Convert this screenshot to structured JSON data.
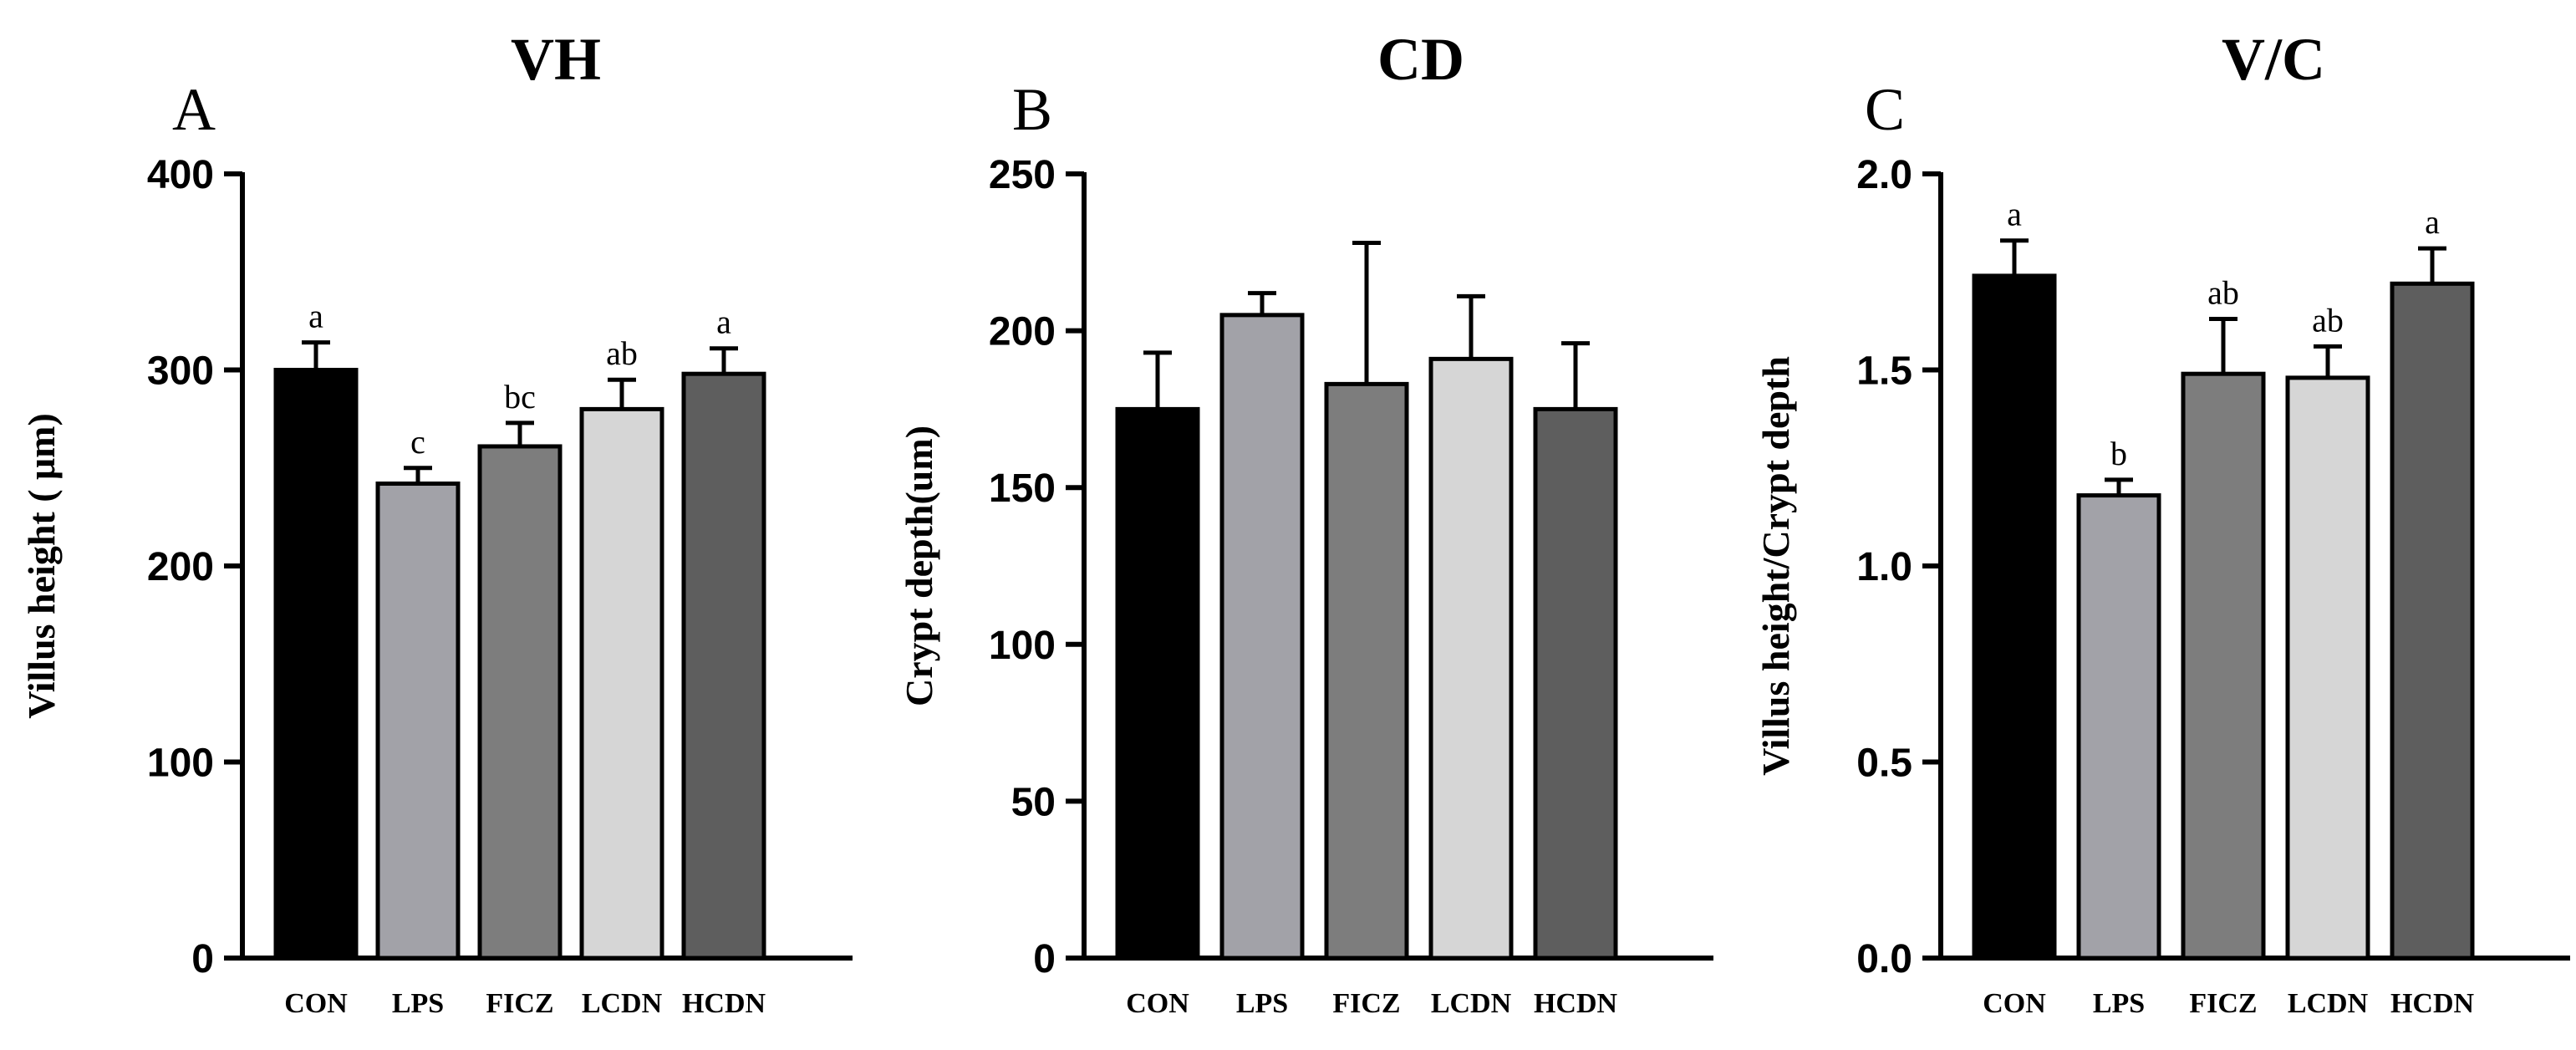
{
  "chart_data": [
    {
      "type": "bar",
      "letter": "A",
      "title": "VH",
      "ylabel": "Villus height ( μm)",
      "xlabel": "",
      "ylim": [
        0,
        400
      ],
      "yticks": [
        "0",
        "100",
        "200",
        "300",
        "400"
      ],
      "ytick_values": [
        0,
        100,
        200,
        300,
        400
      ],
      "categories": [
        "CON",
        "LPS",
        "FICZ",
        "LCDN",
        "HCDN"
      ],
      "values": [
        300,
        242,
        261,
        280,
        298
      ],
      "errors": [
        14,
        8,
        12,
        15,
        13
      ],
      "significance": [
        "a",
        "c",
        "bc",
        "ab",
        "a"
      ],
      "colors": [
        "#000000",
        "#a2a2a8",
        "#7d7d7d",
        "#d6d6d6",
        "#5e5e5e"
      ]
    },
    {
      "type": "bar",
      "letter": "B",
      "title": "CD",
      "ylabel": "Crypt depth(um)",
      "xlabel": "",
      "ylim": [
        0,
        250
      ],
      "yticks": [
        "0",
        "50",
        "100",
        "150",
        "200",
        "250"
      ],
      "ytick_values": [
        0,
        50,
        100,
        150,
        200,
        250
      ],
      "categories": [
        "CON",
        "LPS",
        "FICZ",
        "LCDN",
        "HCDN"
      ],
      "values": [
        175,
        205,
        183,
        191,
        175
      ],
      "errors": [
        18,
        7,
        45,
        20,
        21
      ],
      "significance": [
        "",
        "",
        "",
        "",
        ""
      ],
      "colors": [
        "#000000",
        "#a2a2a8",
        "#7d7d7d",
        "#d6d6d6",
        "#5e5e5e"
      ]
    },
    {
      "type": "bar",
      "letter": "C",
      "title": "V/C",
      "ylabel": "Villus height/Crypt depth",
      "xlabel": "",
      "ylim": [
        0,
        2.0
      ],
      "yticks": [
        "0.0",
        "0.5",
        "1.0",
        "1.5",
        "2.0"
      ],
      "ytick_values": [
        0,
        0.5,
        1.0,
        1.5,
        2.0
      ],
      "categories": [
        "CON",
        "LPS",
        "FICZ",
        "LCDN",
        "HCDN"
      ],
      "values": [
        1.74,
        1.18,
        1.49,
        1.48,
        1.72
      ],
      "errors": [
        0.09,
        0.04,
        0.14,
        0.08,
        0.09
      ],
      "significance": [
        "a",
        "b",
        "ab",
        "ab",
        "a"
      ],
      "colors": [
        "#000000",
        "#a2a2a8",
        "#7d7d7d",
        "#d6d6d6",
        "#5e5e5e"
      ]
    }
  ]
}
